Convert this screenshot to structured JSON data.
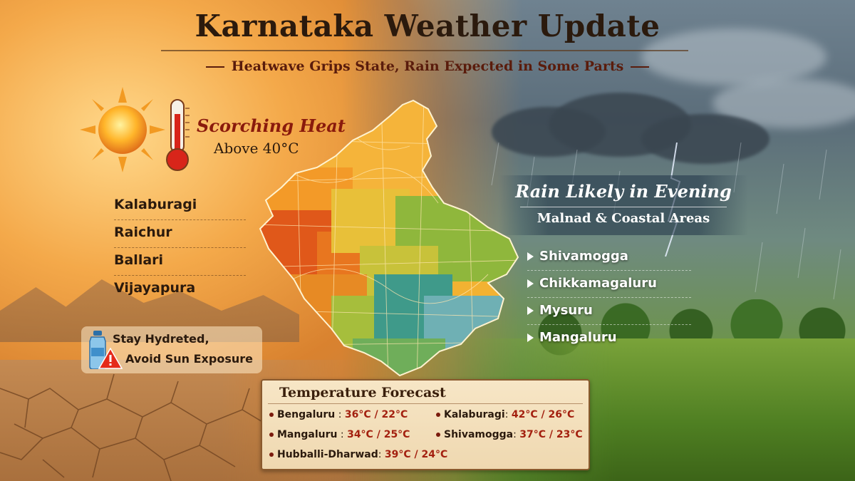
{
  "header": {
    "title": "Karnataka Weather Update",
    "subtitle": "Heatwave Grips State, Rain Expected in Some Parts"
  },
  "heat": {
    "title": "Scorching Heat",
    "subtitle": "Above 40°C",
    "districts": [
      "Kalaburagi",
      "Raichur",
      "Ballari",
      "Vijayapura"
    ],
    "advice_line1": "Stay Hydreted,",
    "advice_line2": "Avoid Sun Exposure"
  },
  "rain": {
    "title": "Rain Likely in Evening",
    "subtitle": "Malnad & Coastal Areas",
    "districts": [
      "Shivamogga",
      "Chikkamagaluru",
      "Mysuru",
      "Mangaluru"
    ]
  },
  "forecast": {
    "title": "Temperature Forecast",
    "items": [
      {
        "city": "Bengaluru",
        "temps": "36°C / 22°C"
      },
      {
        "city": "Kalaburagi",
        "temps": "42°C / 26°C"
      },
      {
        "city": "Mangaluru",
        "temps": "34°C / 25°C"
      },
      {
        "city": "Shivamogga",
        "temps": "37°C / 23°C"
      },
      {
        "city": "Hubballi-Dharwad",
        "temps": "39°C / 24°C"
      }
    ]
  },
  "colors": {
    "heat_accent": "#8a1a0c",
    "rain_panel": "#1e3246",
    "temperature_text": "#a3200f"
  },
  "icons": [
    "sun-icon",
    "thermometer-icon",
    "water-bottle-icon",
    "warning-icon",
    "karnataka-map"
  ]
}
